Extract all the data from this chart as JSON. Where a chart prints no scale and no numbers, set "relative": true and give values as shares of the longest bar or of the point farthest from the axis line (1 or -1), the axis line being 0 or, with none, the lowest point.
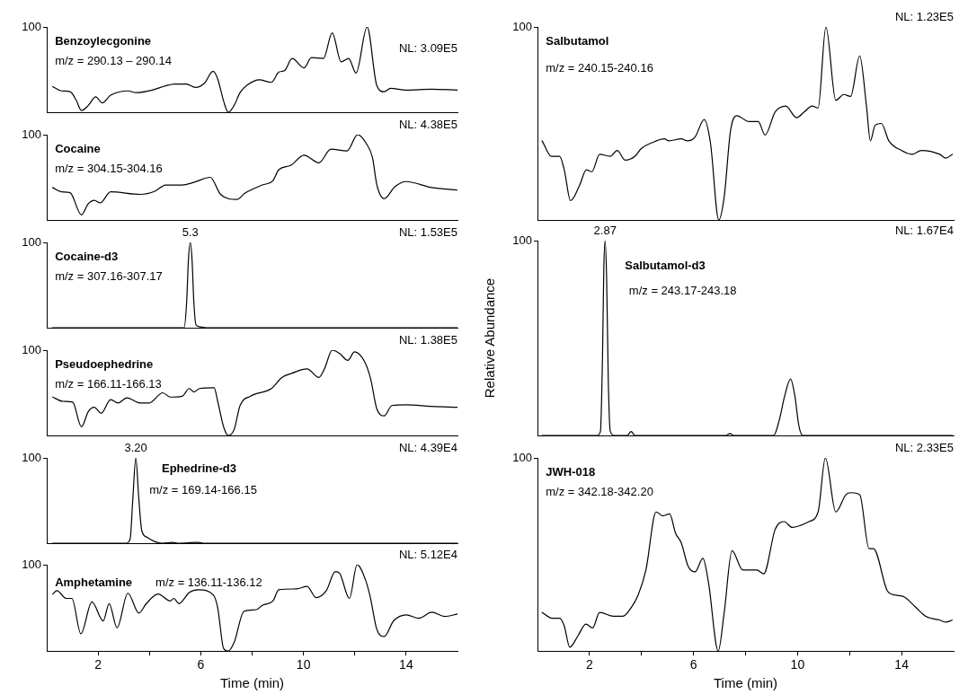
{
  "chart_data": [
    {
      "type": "line",
      "relative": true,
      "color": "#000000",
      "xlim": [
        0,
        16
      ],
      "tick_labels": "y",
      "annotations": [
        "Benzoylecgonine",
        "m/z = 290.13 – 290.14",
        "NL: 3.09E5",
        "100"
      ],
      "x": [
        0.23,
        0.57,
        0.91,
        1.15,
        1.35,
        1.62,
        1.91,
        2.16,
        2.49,
        3.18,
        3.47,
        4.11,
        4.63,
        4.98,
        5.44,
        5.79,
        6.14,
        6.48,
        6.66,
        6.89,
        7.07,
        7.3,
        7.53,
        7.82,
        8.28,
        8.75,
        9.04,
        9.27,
        9.56,
        10.02,
        10.31,
        10.78,
        11.12,
        11.47,
        11.76,
        12.05,
        12.48,
        12.86,
        13.15,
        13.39,
        14,
        15,
        16
      ],
      "values": [
        0.3,
        0.25,
        0.24,
        0.14,
        0.02,
        0.08,
        0.18,
        0.11,
        0.2,
        0.25,
        0.23,
        0.26,
        0.31,
        0.33,
        0.33,
        0.29,
        0.34,
        0.48,
        0.39,
        0.13,
        0,
        0.08,
        0.23,
        0.32,
        0.38,
        0.35,
        0.47,
        0.49,
        0.63,
        0.52,
        0.64,
        0.63,
        0.93,
        0.59,
        0.63,
        0.46,
        1,
        0.31,
        0.24,
        0.28,
        0.26,
        0.27,
        0.26
      ]
    },
    {
      "type": "line",
      "relative": true,
      "color": "#000000",
      "xlim": [
        0,
        16
      ],
      "tick_labels": "y",
      "annotations": [
        "Cocaine",
        "m/z = 304.15-304.16",
        "NL: 4.38E5",
        "100"
      ],
      "x": [
        0.23,
        0.57,
        0.91,
        1.35,
        1.62,
        1.85,
        2.08,
        2.49,
        3.64,
        4.23,
        4.63,
        5.27,
        5.73,
        6.37,
        6.77,
        7.41,
        7.7,
        8.4,
        8.81,
        9.04,
        9.5,
        10.02,
        10.6,
        11.07,
        11.7,
        12.11,
        12.46,
        12.69,
        12.86,
        13.15,
        13.56,
        14,
        15,
        16
      ],
      "values": [
        0.38,
        0.33,
        0.32,
        0.06,
        0.19,
        0.23,
        0.2,
        0.33,
        0.3,
        0.34,
        0.41,
        0.41,
        0.44,
        0.5,
        0.3,
        0.24,
        0.31,
        0.41,
        0.46,
        0.59,
        0.64,
        0.76,
        0.67,
        0.83,
        0.81,
        1,
        0.89,
        0.73,
        0.41,
        0.25,
        0.39,
        0.45,
        0.38,
        0.35
      ]
    },
    {
      "type": "line",
      "relative": true,
      "color": "#000000",
      "xlim": [
        0,
        16
      ],
      "tick_labels": "y",
      "annotations": [
        "Cocaine-d3",
        "m/z = 307.16-307.17",
        "NL: 1.53E5",
        "100",
        {
          "text": "5.3",
          "x": 5.59,
          "y": 1
        }
      ],
      "x": [
        0.23,
        5.35,
        5.45,
        5.52,
        5.59,
        5.66,
        5.73,
        5.82,
        6,
        6.2,
        16
      ],
      "values": [
        0,
        0,
        0.3,
        0.8,
        1,
        0.8,
        0.3,
        0.03,
        0.01,
        0,
        0
      ]
    },
    {
      "type": "line",
      "relative": true,
      "color": "#000000",
      "xlim": [
        0,
        16
      ],
      "tick_labels": "y",
      "annotations": [
        "Pseudoephedrine",
        "m/z = 166.11-166.13",
        "NL: 1.38E5",
        "100"
      ],
      "x": [
        0.23,
        0.63,
        1.01,
        1.35,
        1.62,
        1.85,
        2.12,
        2.49,
        2.78,
        3.12,
        3.64,
        3.99,
        4.52,
        4.81,
        5.27,
        5.56,
        5.73,
        5.96,
        6.52,
        6.66,
        6.89,
        7.07,
        7.3,
        7.53,
        7.94,
        8.75,
        9.16,
        9.56,
        10.14,
        10.6,
        10.83,
        11.12,
        11.41,
        11.73,
        11.99,
        12.39,
        12.62,
        12.86,
        13.15,
        13.44,
        14,
        15,
        16
      ],
      "values": [
        0.45,
        0.4,
        0.39,
        0.1,
        0.28,
        0.33,
        0.26,
        0.42,
        0.38,
        0.44,
        0.38,
        0.38,
        0.5,
        0.45,
        0.46,
        0.55,
        0.51,
        0.55,
        0.56,
        0.4,
        0.1,
        0,
        0.07,
        0.35,
        0.46,
        0.55,
        0.68,
        0.73,
        0.78,
        0.68,
        0.79,
        1,
        0.96,
        0.88,
        0.98,
        0.86,
        0.66,
        0.31,
        0.23,
        0.35,
        0.36,
        0.34,
        0.33
      ]
    },
    {
      "type": "line",
      "relative": true,
      "color": "#000000",
      "xlim": [
        0,
        16
      ],
      "tick_labels": "y",
      "annotations": [
        "Ephedrine-d3",
        "m/z = 169.14-166.15",
        "NL: 4.39E4",
        "100",
        {
          "text": "3.20",
          "x": 3.47,
          "y": 1
        }
      ],
      "x": [
        0.23,
        3.1,
        3.25,
        3.35,
        3.47,
        3.58,
        3.7,
        3.9,
        4.2,
        4.5,
        4.9,
        5.1,
        5.9,
        6.1,
        16
      ],
      "values": [
        0,
        0,
        0.05,
        0.5,
        1,
        0.55,
        0.15,
        0.07,
        0.02,
        0,
        0.01,
        0,
        0.01,
        0,
        0
      ]
    },
    {
      "type": "line",
      "relative": true,
      "color": "#000000",
      "xlim": [
        0,
        16
      ],
      "xticks": [
        2,
        {
          "value": 4,
          "label": null
        },
        6,
        {
          "value": 8,
          "label": null
        },
        10,
        {
          "value": 12,
          "label": null
        },
        14
      ],
      "xlabel": "Time (min)",
      "annotations": [
        "Amphetamine",
        "m/z = 136.11-136.12",
        "NL: 5.12E4",
        "100"
      ],
      "x": [
        0.23,
        0.4,
        0.75,
        0.98,
        1.33,
        1.76,
        2.2,
        2.43,
        2.74,
        3.16,
        3.59,
        3.88,
        4.34,
        4.81,
        4.95,
        5.15,
        5.56,
        5.91,
        6.49,
        6.66,
        6.89,
        7.07,
        7.3,
        7.68,
        8.17,
        8.4,
        8.81,
        9.04,
        9.74,
        10.14,
        10.49,
        10.89,
        11.24,
        11.41,
        11.79,
        12.09,
        12.41,
        12.6,
        12.86,
        13.15,
        13.51,
        14,
        14.5,
        15,
        15.5,
        16
      ],
      "values": [
        0.66,
        0.7,
        0.61,
        0.61,
        0.2,
        0.57,
        0.35,
        0.55,
        0.27,
        0.67,
        0.44,
        0.55,
        0.66,
        0.58,
        0.61,
        0.55,
        0.68,
        0.71,
        0.65,
        0.5,
        0.03,
        0,
        0.1,
        0.46,
        0.48,
        0.53,
        0.58,
        0.71,
        0.72,
        0.75,
        0.62,
        0.7,
        0.92,
        0.9,
        0.61,
        1,
        0.83,
        0.63,
        0.25,
        0.17,
        0.35,
        0.42,
        0.38,
        0.45,
        0.4,
        0.43
      ]
    },
    {
      "type": "line",
      "relative": true,
      "color": "#000000",
      "xlim": [
        0,
        16
      ],
      "tick_labels": "y",
      "annotations": [
        "Salbutamol",
        "m/z = 240.15-240.16",
        "NL: 1.23E5",
        "100"
      ],
      "x": [
        0.18,
        0.53,
        0.85,
        1.03,
        1.27,
        1.62,
        1.88,
        2.09,
        2.39,
        2.8,
        3.07,
        3.37,
        3.75,
        3.99,
        4.4,
        4.88,
        5.05,
        5.53,
        5.76,
        6.06,
        6.41,
        6.65,
        6.97,
        7.18,
        7.42,
        7.66,
        8.13,
        8.49,
        8.75,
        9.14,
        9.55,
        9.96,
        10.26,
        10.56,
        10.79,
        11.09,
        11.47,
        11.78,
        12.04,
        12.39,
        12.65,
        12.8,
        12.98,
        13.22,
        13.51,
        13.99,
        14.4,
        14.76,
        15.47,
        15.7,
        15.95
      ],
      "values": [
        0.41,
        0.33,
        0.33,
        0.26,
        0.1,
        0.18,
        0.26,
        0.25,
        0.34,
        0.33,
        0.36,
        0.31,
        0.33,
        0.37,
        0.4,
        0.42,
        0.41,
        0.42,
        0.41,
        0.43,
        0.52,
        0.4,
        0,
        0.12,
        0.46,
        0.54,
        0.51,
        0.51,
        0.44,
        0.56,
        0.59,
        0.53,
        0.56,
        0.59,
        0.58,
        1,
        0.62,
        0.65,
        0.64,
        0.85,
        0.59,
        0.41,
        0.49,
        0.5,
        0.41,
        0.36,
        0.34,
        0.36,
        0.34,
        0.32,
        0.34
      ]
    },
    {
      "type": "line",
      "relative": true,
      "color": "#000000",
      "xlim": [
        0,
        16
      ],
      "tick_labels": "y",
      "ylabel": "Relative Abundance",
      "annotations": [
        "Salbutamol-d3",
        "m/z = 243.17-243.18",
        "NL: 1.67E4",
        "100",
        {
          "text": "2.87",
          "x": 2.6,
          "y": 1
        }
      ],
      "x": [
        0.18,
        2.3,
        2.42,
        2.5,
        2.55,
        2.6,
        2.66,
        2.72,
        2.8,
        2.95,
        3.45,
        3.6,
        3.75,
        7.25,
        7.4,
        7.55,
        9.08,
        9.3,
        9.5,
        9.73,
        9.9,
        10.05,
        10.2,
        15.95
      ],
      "values": [
        0,
        0,
        0.02,
        0.4,
        0.85,
        1,
        0.8,
        0.3,
        0.02,
        0,
        0,
        0.02,
        0,
        0,
        0.01,
        0,
        0,
        0.08,
        0.2,
        0.29,
        0.2,
        0.05,
        0,
        0
      ]
    },
    {
      "type": "line",
      "relative": true,
      "color": "#000000",
      "xlim": [
        0,
        16
      ],
      "xticks": [
        2,
        {
          "value": 4,
          "label": null
        },
        6,
        {
          "value": 8,
          "label": null
        },
        10,
        {
          "value": 12,
          "label": null
        },
        14
      ],
      "xlabel": "Time (min)",
      "annotations": [
        "JWH-018",
        "m/z = 342.18-342.20",
        "NL: 2.33E5",
        "100"
      ],
      "x": [
        0.18,
        0.56,
        0.85,
        1.03,
        1.24,
        1.56,
        1.86,
        2.12,
        2.39,
        2.92,
        3.28,
        3.63,
        3.87,
        4.17,
        4.56,
        4.82,
        5.08,
        5.31,
        5.53,
        5.79,
        6.06,
        6.36,
        6.57,
        6.95,
        7.18,
        7.48,
        7.89,
        8.43,
        8.7,
        9.14,
        9.49,
        9.79,
        10.44,
        10.79,
        11.07,
        11.47,
        11.86,
        12.04,
        12.39,
        12.75,
        12.92,
        13.46,
        13.75,
        14.11,
        14.52,
        14.93,
        15.47,
        15.7,
        15.95
      ],
      "values": [
        0.2,
        0.17,
        0.17,
        0.13,
        0.02,
        0.08,
        0.14,
        0.12,
        0.2,
        0.18,
        0.18,
        0.23,
        0.29,
        0.42,
        0.72,
        0.7,
        0.71,
        0.61,
        0.56,
        0.44,
        0.41,
        0.48,
        0.36,
        0,
        0.2,
        0.52,
        0.42,
        0.42,
        0.4,
        0.63,
        0.67,
        0.64,
        0.67,
        0.72,
        1,
        0.72,
        0.81,
        0.82,
        0.81,
        0.53,
        0.53,
        0.31,
        0.29,
        0.28,
        0.23,
        0.18,
        0.16,
        0.15,
        0.16
      ]
    }
  ]
}
